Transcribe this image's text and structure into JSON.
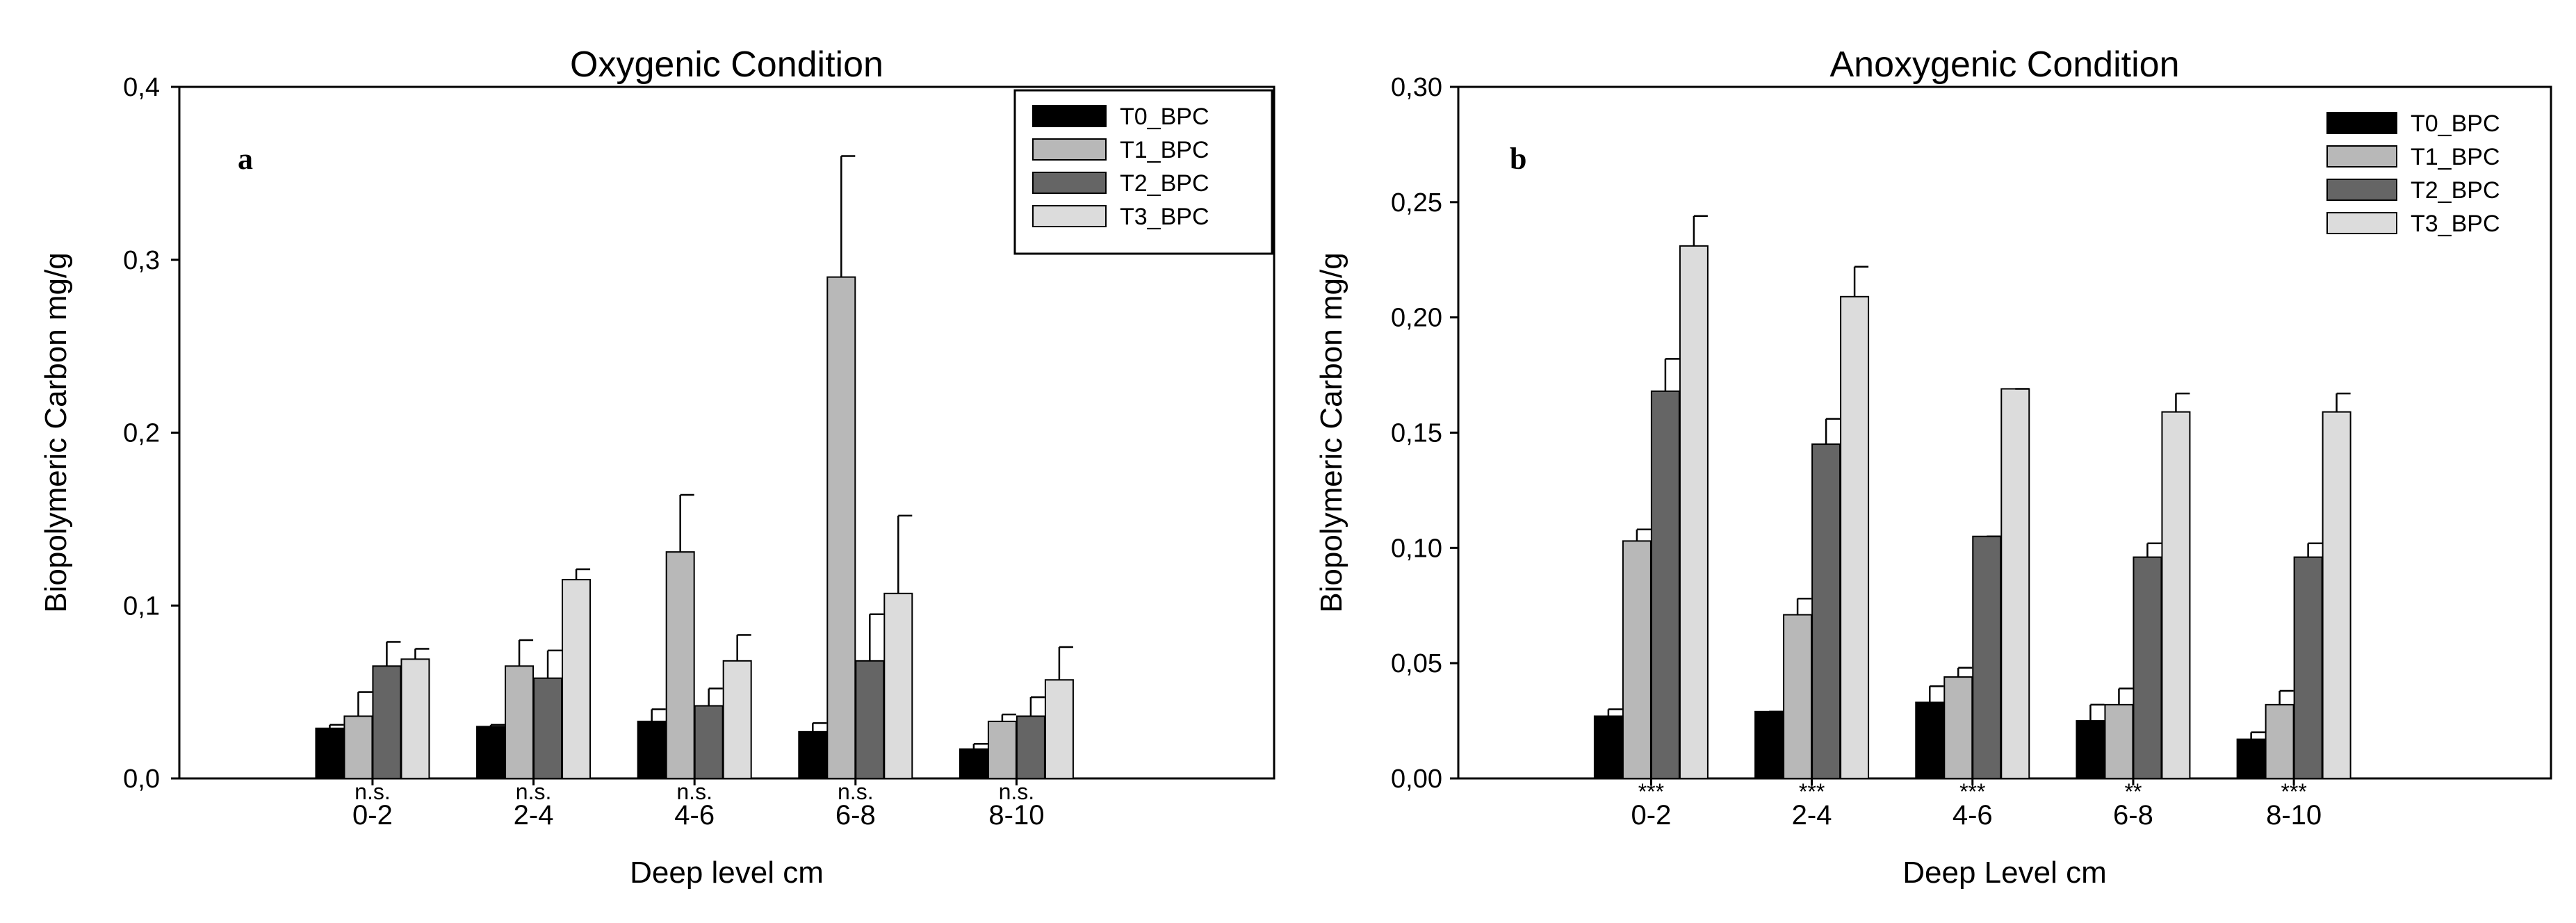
{
  "chart_data": [
    {
      "panel": "a",
      "type": "bar",
      "title": "Oxygenic Condition",
      "xlabel": "Deep level cm",
      "ylabel": "Biopolymeric Carbon mg/g",
      "ylim": [
        0,
        0.4
      ],
      "yticks": [
        0,
        0.1,
        0.2,
        0.3,
        0.4
      ],
      "ytick_labels": [
        "0,0",
        "0,1",
        "0,2",
        "0,3",
        "0,4"
      ],
      "categories": [
        "0-2",
        "2-4",
        "4-6",
        "6-8",
        "8-10"
      ],
      "significance": [
        "n.s.",
        "n.s.",
        "n.s.",
        "n.s.",
        "n.s."
      ],
      "legend_position": "top-right",
      "series": [
        {
          "name": "T0_BPC",
          "color": "#000000",
          "values": [
            0.029,
            0.03,
            0.033,
            0.027,
            0.017
          ],
          "errors": [
            0.002,
            0.001,
            0.007,
            0.005,
            0.003
          ]
        },
        {
          "name": "T1_BPC",
          "color": "#b8b8b8",
          "values": [
            0.036,
            0.065,
            0.131,
            0.29,
            0.033
          ],
          "errors": [
            0.014,
            0.015,
            0.033,
            0.07,
            0.004
          ]
        },
        {
          "name": "T2_BPC",
          "color": "#656565",
          "values": [
            0.065,
            0.058,
            0.042,
            0.068,
            0.036
          ],
          "errors": [
            0.014,
            0.016,
            0.01,
            0.027,
            0.011
          ]
        },
        {
          "name": "T3_BPC",
          "color": "#dcdcdc",
          "values": [
            0.069,
            0.115,
            0.068,
            0.107,
            0.057
          ],
          "errors": [
            0.006,
            0.006,
            0.015,
            0.045,
            0.019
          ]
        }
      ]
    },
    {
      "panel": "b",
      "type": "bar",
      "title": "Anoxygenic Condition",
      "xlabel": "Deep Level cm",
      "ylabel": "Biopolymeric Carbon mg/g",
      "ylim": [
        0,
        0.3
      ],
      "yticks": [
        0,
        0.05,
        0.1,
        0.15,
        0.2,
        0.25,
        0.3
      ],
      "ytick_labels": [
        "0,00",
        "0,05",
        "0,10",
        "0,15",
        "0,20",
        "0,25",
        "0,30"
      ],
      "categories": [
        "0-2",
        "2-4",
        "4-6",
        "6-8",
        "8-10"
      ],
      "significance": [
        "***",
        "***",
        "***",
        "**",
        "***"
      ],
      "legend_position": "top-right",
      "series": [
        {
          "name": "T0_BPC",
          "color": "#000000",
          "values": [
            0.027,
            0.029,
            0.033,
            0.025,
            0.017
          ],
          "errors": [
            0.003,
            0.0,
            0.007,
            0.007,
            0.003
          ]
        },
        {
          "name": "T1_BPC",
          "color": "#b8b8b8",
          "values": [
            0.103,
            0.071,
            0.044,
            0.032,
            0.032
          ],
          "errors": [
            0.005,
            0.007,
            0.004,
            0.007,
            0.006
          ]
        },
        {
          "name": "T2_BPC",
          "color": "#656565",
          "values": [
            0.168,
            0.145,
            0.105,
            0.096,
            0.096
          ],
          "errors": [
            0.014,
            0.011,
            0.0,
            0.006,
            0.006
          ]
        },
        {
          "name": "T3_BPC",
          "color": "#dcdcdc",
          "values": [
            0.231,
            0.209,
            0.169,
            0.159,
            0.159
          ],
          "errors": [
            0.013,
            0.013,
            0.0,
            0.008,
            0.008
          ]
        }
      ]
    }
  ]
}
